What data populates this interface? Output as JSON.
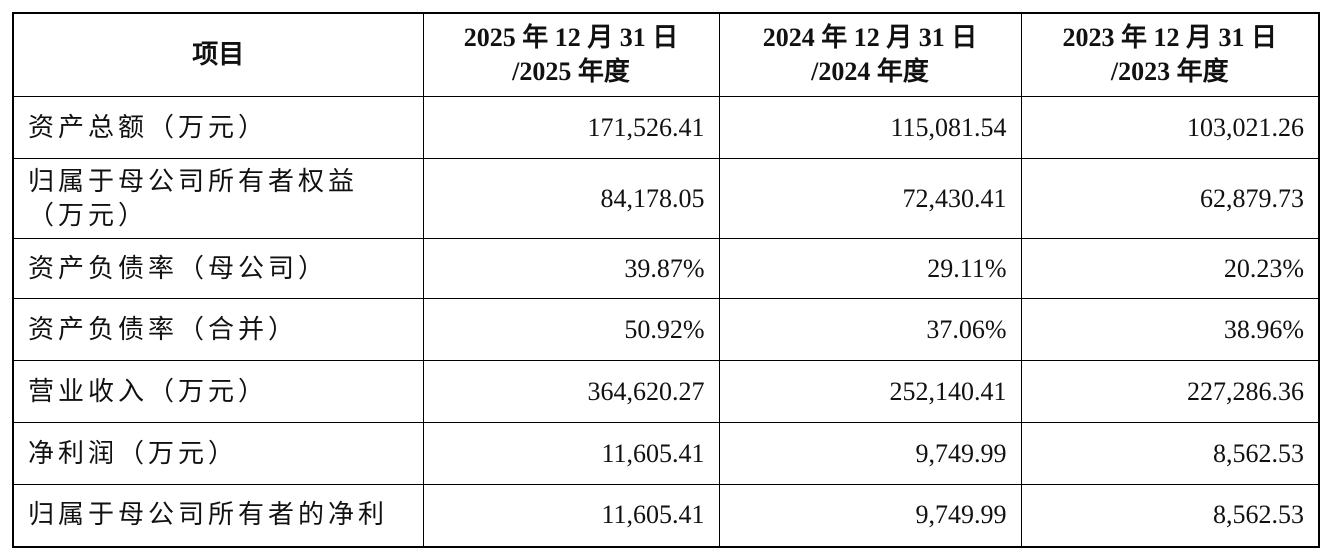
{
  "table": {
    "header": [
      "项目",
      [
        "2025 年 12 月 31 日",
        "/2025 年度"
      ],
      [
        "2024 年 12 月 31 日",
        "/2024 年度"
      ],
      [
        "2023 年 12 月 31 日",
        "/2023 年度"
      ]
    ],
    "rows": [
      [
        "资产总额（万元）",
        "171,526.41",
        "115,081.54",
        "103,021.26"
      ],
      [
        "归属于母公司所有者权益（万元）",
        "84,178.05",
        "72,430.41",
        "62,879.73"
      ],
      [
        "资产负债率（母公司）",
        "39.87%",
        "29.11%",
        "20.23%"
      ],
      [
        "资产负债率（合并）",
        "50.92%",
        "37.06%",
        "38.96%"
      ],
      [
        "营业收入（万元）",
        "364,620.27",
        "252,140.41",
        "227,286.36"
      ],
      [
        "净利润（万元）",
        "11,605.41",
        "9,749.99",
        "8,562.53"
      ],
      [
        "归属于母公司所有者的净利",
        "11,605.41",
        "9,749.99",
        "8,562.53"
      ]
    ]
  }
}
